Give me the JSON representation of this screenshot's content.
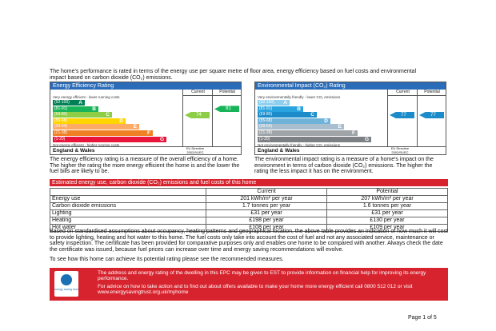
{
  "intro": "The home's performance is rated in terms of the energy use per square metre of floor area, energy efficiency based on fuel costs and environmental impact based on carbon dioxide (CO₂) emissions.",
  "ratings": [
    {
      "title": "Energy Efficiency Rating",
      "columns": [
        "Current",
        "Potential"
      ],
      "top_note": "Very energy efficient - lower running costs",
      "bottom_note": "Not energy efficient - higher running costs",
      "bands": [
        {
          "range": "(92-100)",
          "letter": "A",
          "color": "#008054"
        },
        {
          "range": "(81-91)",
          "letter": "B",
          "color": "#19b459"
        },
        {
          "range": "(69-80)",
          "letter": "C",
          "color": "#8dce46"
        },
        {
          "range": "(55-68)",
          "letter": "D",
          "color": "#ffd500"
        },
        {
          "range": "(39-54)",
          "letter": "E",
          "color": "#fcaa65"
        },
        {
          "range": "(21-38)",
          "letter": "F",
          "color": "#ef8023"
        },
        {
          "range": "(1-20)",
          "letter": "G",
          "color": "#e9153b"
        }
      ],
      "current": 74,
      "potential": 81,
      "region": "England & Wales",
      "directive": "EU Directive 2002/91/EC",
      "description": "The energy efficiency rating is a measure of the overall efficiency of a home. The higher the rating the more energy efficient the home is and the lower the fuel bills are likely to be."
    },
    {
      "title": "Environmental Impact (CO₂) Rating",
      "columns": [
        "Current",
        "Potential"
      ],
      "top_note": "Very environmentally friendly - lower CO₂ emissions",
      "bottom_note": "Not environmentally friendly - higher CO₂ emissions",
      "bands": [
        {
          "range": "(92-100)",
          "letter": "A",
          "color": "#8fcfee"
        },
        {
          "range": "(81-91)",
          "letter": "B",
          "color": "#2aa4de"
        },
        {
          "range": "(69-80)",
          "letter": "C",
          "color": "#1b8cc9"
        },
        {
          "range": "(55-68)",
          "letter": "D",
          "color": "#6fb3da"
        },
        {
          "range": "(39-54)",
          "letter": "E",
          "color": "#a9bfcf"
        },
        {
          "range": "(21-38)",
          "letter": "F",
          "color": "#9fa4a8"
        },
        {
          "range": "(1-20)",
          "letter": "G",
          "color": "#7d8084"
        }
      ],
      "current": 77,
      "potential": 77,
      "region": "England & Wales",
      "directive": "EU Directive 2002/91/EC",
      "description": "The environmental impact rating is a measure of a home's impact on the environment in terms of carbon dioxide (CO₂) emissions. The higher the rating the less impact it has on the environment."
    }
  ],
  "costs": {
    "title": "Estimated energy use, carbon dioxide (CO₂) emissions and fuel costs of this home",
    "header": [
      "Current",
      "Potential"
    ],
    "rows": [
      [
        "Energy use",
        "201 kWh/m² per year",
        "207 kWh/m² per year"
      ],
      [
        "Carbon dioxide emissions",
        "1.7 tonnes per year",
        "1.6 tonnes per year"
      ],
      [
        "Lighting",
        "£31 per year",
        "£31 per year"
      ],
      [
        "Heating",
        "£198 per year",
        "£130 per year"
      ],
      [
        "Hot water",
        "£108 per year",
        "£109 per year"
      ]
    ]
  },
  "notes": [
    "Based on standardised assumptions about occupancy, heating patterns and geographical location, the above table provides an indication of how much it will cost to provide lighting, heating and hot water to this home. The fuel costs only take into account the cost of fuel and not any associated service, maintenance or safety inspection. The certificate has been provided for comparative purposes only and enables one home to be compared with another. Always check the date the certificate was issued, because fuel prices can increase over time and energy saving recommendations will evolve.",
    "To see how this home can achieve its potential rating please see the recommended measures."
  ],
  "footer": {
    "logo": "energy saving trust",
    "lines": [
      "The address and energy rating of the dwelling in this EPC may be given to EST to provide information on financial help for improving its energy performance.",
      "For advice on how to take action and to find out about offers available to make your home more energy efficient call 0800 512 012 or visit www.energysavingtrust.org.uk/myhome"
    ]
  },
  "page": "Page 1 of 5"
}
